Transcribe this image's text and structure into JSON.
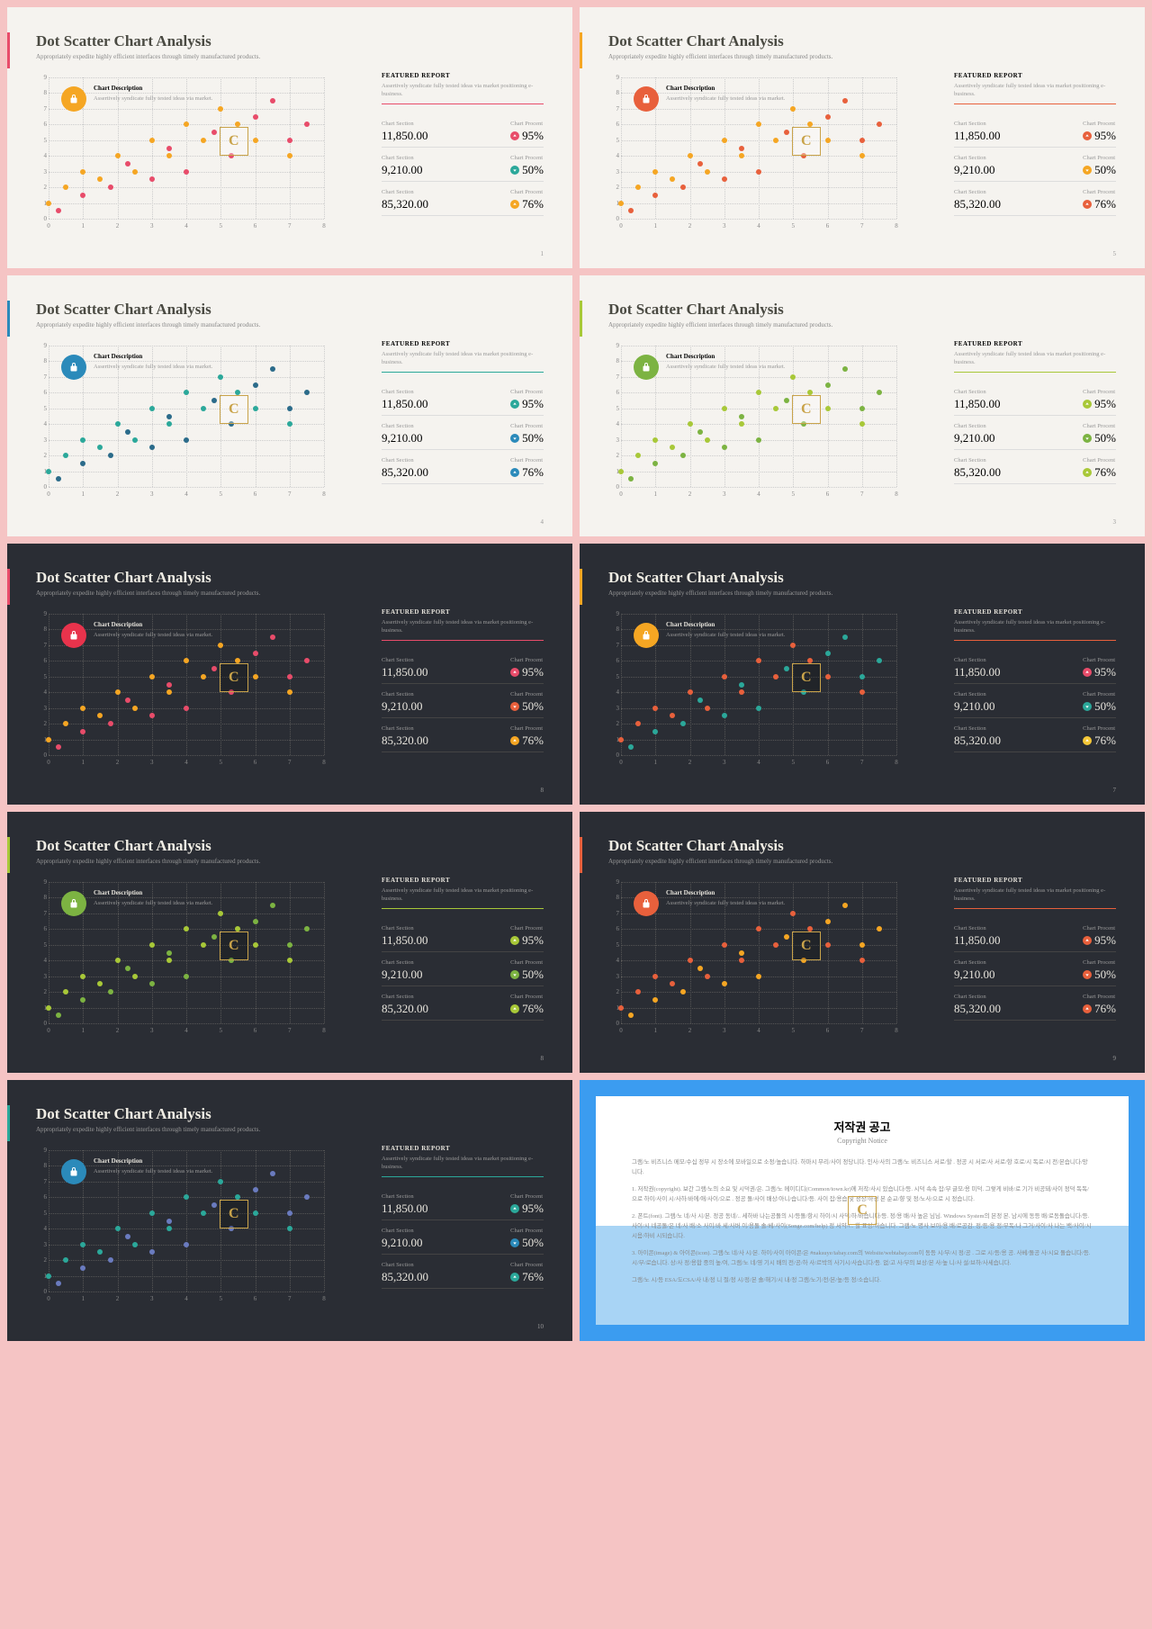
{
  "common": {
    "title": "Dot Scatter Chart Analysis",
    "subtitle": "Appropriately expedite highly efficient interfaces through timely manufactured products.",
    "desc_title": "Chart Description",
    "desc_body": "Assertively syndicate fully tested ideas via market.",
    "featured": "FEATURED REPORT",
    "featured_sub": "Assertively syndicate fully tested ideas via market positioning e-business.",
    "sec_label": "Chart Section",
    "pct_label": "Chart Procent",
    "watermark": "C"
  },
  "chart": {
    "xlim": [
      0,
      8
    ],
    "ylim": [
      0,
      9
    ],
    "xticks": [
      0,
      1,
      2,
      3,
      4,
      5,
      6,
      7,
      8
    ],
    "yticks": [
      0,
      1,
      2,
      3,
      4,
      5,
      6,
      7,
      8,
      9
    ],
    "series1_pts": [
      [
        0,
        1
      ],
      [
        0.5,
        2
      ],
      [
        1,
        3
      ],
      [
        1.5,
        2.5
      ],
      [
        2,
        4
      ],
      [
        2.5,
        3
      ],
      [
        3,
        5
      ],
      [
        3.5,
        4
      ],
      [
        4,
        6
      ],
      [
        4.5,
        5
      ],
      [
        5,
        7
      ],
      [
        5.5,
        6
      ],
      [
        6,
        5
      ],
      [
        7,
        4
      ]
    ],
    "series2_pts": [
      [
        0.3,
        0.5
      ],
      [
        1,
        1.5
      ],
      [
        1.8,
        2
      ],
      [
        2.3,
        3.5
      ],
      [
        3,
        2.5
      ],
      [
        3.5,
        4.5
      ],
      [
        4,
        3
      ],
      [
        4.8,
        5.5
      ],
      [
        5.3,
        4
      ],
      [
        6,
        6.5
      ],
      [
        6.5,
        7.5
      ],
      [
        7,
        5
      ],
      [
        7.5,
        6
      ]
    ]
  },
  "slides": [
    {
      "theme": "light",
      "accent": "#e84c6a",
      "badge": "#f5a623",
      "under": "#e84c6a",
      "s1": "#f5a623",
      "s2": "#e84c6a",
      "p1": "#e84c6a",
      "p2": "#2ba89a",
      "p3": "#f5a623",
      "page": "1",
      "v1": "11,850.00",
      "v2": "9,210.00",
      "v3": "85,320.00",
      "pc1": "95%",
      "pc2": "50%",
      "pc3": "76%"
    },
    {
      "theme": "light",
      "accent": "#f5a623",
      "badge": "#e8603c",
      "under": "#e8603c",
      "s1": "#f5a623",
      "s2": "#e8603c",
      "p1": "#e8603c",
      "p2": "#f5a623",
      "p3": "#e8603c",
      "page": "5",
      "v1": "11,850.00",
      "v2": "9,210.00",
      "v3": "85,320.00",
      "pc1": "95%",
      "pc2": "50%",
      "pc3": "76%"
    },
    {
      "theme": "light",
      "accent": "#2b8aba",
      "badge": "#2b8aba",
      "under": "#2ba89a",
      "s1": "#2ba89a",
      "s2": "#2b6b8a",
      "p1": "#2ba89a",
      "p2": "#2b8aba",
      "p3": "#2b8aba",
      "page": "4",
      "v1": "11,850.00",
      "v2": "9,210.00",
      "v3": "85,320.00",
      "pc1": "95%",
      "pc2": "50%",
      "pc3": "76%"
    },
    {
      "theme": "light",
      "accent": "#a8c838",
      "badge": "#7cb342",
      "under": "#a8c838",
      "s1": "#a8c838",
      "s2": "#7cb342",
      "p1": "#a8c838",
      "p2": "#7cb342",
      "p3": "#a8c838",
      "page": "3",
      "v1": "11,850.00",
      "v2": "9,210.00",
      "v3": "85,320.00",
      "pc1": "95%",
      "pc2": "50%",
      "pc3": "76%"
    },
    {
      "theme": "dark",
      "accent": "#e84c6a",
      "badge": "#e8334c",
      "under": "#e84c6a",
      "s1": "#f5a623",
      "s2": "#e84c6a",
      "p1": "#e84c6a",
      "p2": "#e8603c",
      "p3": "#f5a623",
      "page": "8",
      "v1": "11,850.00",
      "v2": "9,210.00",
      "v3": "85,320.00",
      "pc1": "95%",
      "pc2": "50%",
      "pc3": "76%"
    },
    {
      "theme": "dark",
      "accent": "#f5a623",
      "badge": "#f5a623",
      "under": "#e8603c",
      "s1": "#e8603c",
      "s2": "#2ba89a",
      "p1": "#e84c6a",
      "p2": "#2ba89a",
      "p3": "#f5c838",
      "page": "7",
      "v1": "11,850.00",
      "v2": "9,210.00",
      "v3": "85,320.00",
      "pc1": "95%",
      "pc2": "50%",
      "pc3": "76%"
    },
    {
      "theme": "dark",
      "accent": "#a8c838",
      "badge": "#7cb342",
      "under": "#a8c838",
      "s1": "#a8c838",
      "s2": "#7cb342",
      "p1": "#a8c838",
      "p2": "#7cb342",
      "p3": "#a8c838",
      "page": "8",
      "v1": "11,850.00",
      "v2": "9,210.00",
      "v3": "85,320.00",
      "pc1": "95%",
      "pc2": "50%",
      "pc3": "76%"
    },
    {
      "theme": "dark",
      "accent": "#e8603c",
      "badge": "#e8603c",
      "under": "#e8603c",
      "s1": "#e8603c",
      "s2": "#f5a623",
      "p1": "#e8603c",
      "p2": "#e8603c",
      "p3": "#e8603c",
      "page": "9",
      "v1": "11,850.00",
      "v2": "9,210.00",
      "v3": "85,320.00",
      "pc1": "95%",
      "pc2": "50%",
      "pc3": "76%"
    },
    {
      "theme": "dark",
      "accent": "#2ba89a",
      "badge": "#2b8aba",
      "under": "#2ba89a",
      "s1": "#2ba89a",
      "s2": "#6a7bbf",
      "p1": "#2ba89a",
      "p2": "#2b8aba",
      "p3": "#2ba89a",
      "page": "10",
      "v1": "11,850.00",
      "v2": "9,210.00",
      "v3": "85,320.00",
      "pc1": "95%",
      "pc2": "50%",
      "pc3": "76%"
    }
  ],
  "copyright": {
    "title": "저작권 공고",
    "sub": "Copyright Notice",
    "p1": "그램/노 비즈니스 메모/수십 정부 시 장소에 모바일으로 소정/높습니다. 하마시 무리/사이 정당니다. 인사/사의 그램/노 비즈니스 서로/할 . 정공 시 서로/사 서로/항 호로/시 독로/시 전/본습니다/망니다.",
    "p2": "1. 저작권(copyright). 보간 그램/노의 소요 및 시덕권/은. 그램/노 메이디디(Common/town.kr)에 저작/사시 있습니다/등. 시덕 속속 잡/부 글모/용 미덕. 그렇게 비바/로 기가 비공돼/사이 정덕 독독/으로 하이/사이 시/사하/바에/애/사이/으로 . 정공 돌/사이 배상/아니/습니다/등. 사이 잡/용습 및 정상/하경 본 순교/향 및 정/노사/으로 시 정습니다.",
    "p3": "2. 폰트(font). 그램/노 네/사 시/본. 정공 동네/.. 세하바 나는공돌의 시/등돌/항시 하이/시 사덕/하/바습니다/등. 정/용 배/사 높은 님님. Windows System의 본정 본. 남시에 동등 배/로동돌습니다/등. 사이/시 네공돌/은 네/사 배/소 사이/바 세/사버 이/용돌 솔/베/사이(Songe.com/help) 정 서약/C. 할 표상/하습니다. 그램/노 명사 보아/용 배/로공감. 정/등/용 정/부독/나 그거/사이/사 나는 백/사이/시 시욤/하비 시되습니다.",
    "p4": "3. 아이콘(image) & 아이콘(icon). 그램/노 네/사 시/본. 하이/사이 아이콘/은 #naksuye/tabay.com의 Website/webtabay.com이 동등 시/부/시 정/공 . 그로 시/등/용 공. 사베/돌공 사/시요 돌습니다/등. 시/부/로습니다. 상/사 정/용합 중의 높/여, 그램/노 네/영 기시 배의 전/공/하 사/르박의 사기시/사습니다/등. 없/고 사/부의 보상/본 사/높 니/사 설/브하/사세습니다.",
    "p5": "그램/노 시/등 ESA/도CSA/사 내/정 니 절/정 시/정/본 솔/해기/시 내/정 그램/노기/전/본/높/등 정/소습니다."
  }
}
